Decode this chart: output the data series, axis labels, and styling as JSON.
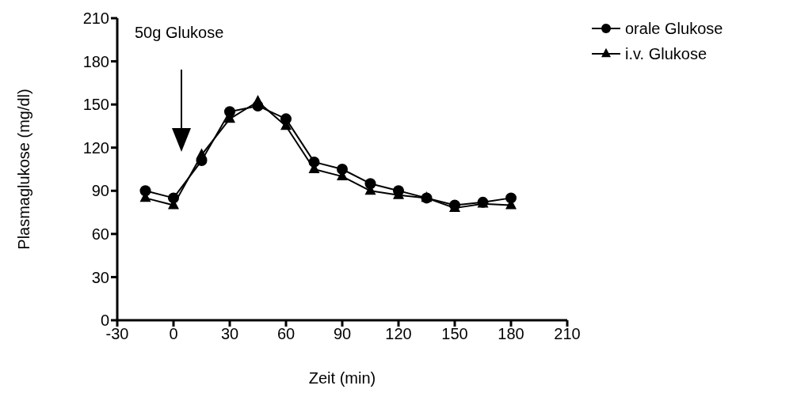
{
  "chart_data": {
    "type": "line",
    "xlabel": "Zeit (min)",
    "ylabel": "Plasmaglukose (mg/dl)",
    "annotations": [
      "50g Glukose"
    ],
    "x": [
      -15,
      0,
      15,
      30,
      45,
      60,
      75,
      90,
      105,
      120,
      135,
      150,
      165,
      180
    ],
    "series": [
      {
        "name": "orale Glukose",
        "color": "#000000",
        "marker": "circle",
        "values": [
          90,
          85,
          111,
          145,
          149,
          140,
          110,
          105,
          95,
          90,
          85,
          80,
          82,
          85
        ]
      },
      {
        "name": "i.v. Glukose",
        "color": "#000000",
        "marker": "triangle",
        "values": [
          85,
          80,
          115,
          140,
          152,
          135,
          105,
          100,
          90,
          87,
          85,
          78,
          81,
          80
        ]
      }
    ],
    "xlim": [
      -30,
      210
    ],
    "xticks": [
      -30,
      0,
      30,
      60,
      90,
      120,
      150,
      180,
      210
    ],
    "ylim": [
      0,
      210
    ],
    "yticks": [
      0,
      30,
      60,
      90,
      120,
      150,
      180,
      210
    ],
    "grid": false,
    "legend": "top right",
    "line_style": "solid"
  }
}
